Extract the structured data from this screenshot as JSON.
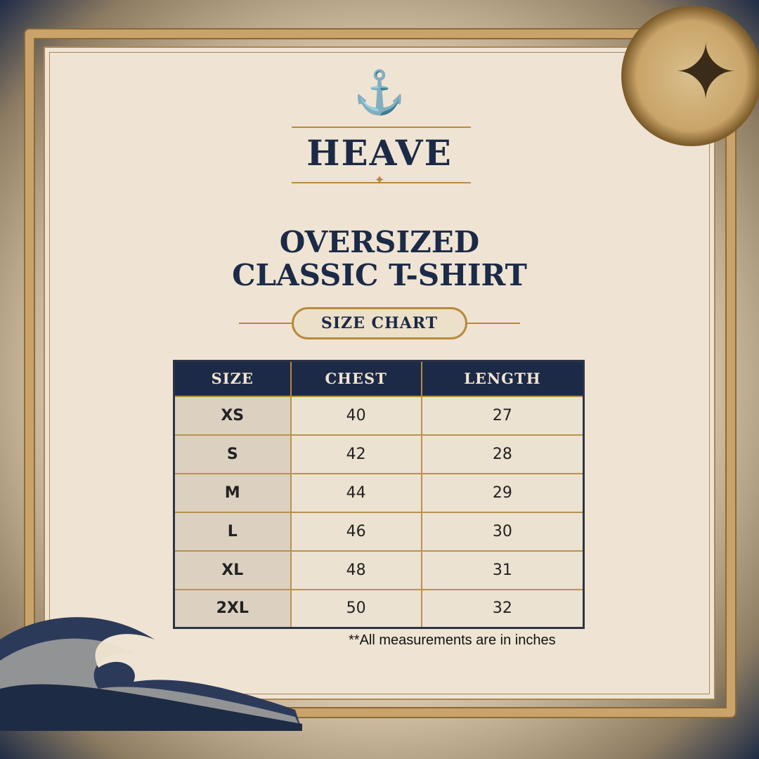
{
  "brand": "HEAVE",
  "title_line1": "OVERSIZED",
  "title_line2": "CLASSIC T-SHIRT",
  "badge": "SIZE CHART",
  "table": {
    "headers": [
      "SIZE",
      "CHEST",
      "LENGTH"
    ],
    "rows": [
      [
        "XS",
        "40",
        "27"
      ],
      [
        "S",
        "42",
        "28"
      ],
      [
        "M",
        "44",
        "29"
      ],
      [
        "L",
        "46",
        "30"
      ],
      [
        "XL",
        "48",
        "31"
      ],
      [
        "2XL",
        "50",
        "32"
      ]
    ]
  },
  "note": "**All measurements are in inches",
  "icons": {
    "logo": "anchor-icon",
    "decor": "compass-icon"
  },
  "colors": {
    "navy": "#1b2a47",
    "gold": "#b8893e",
    "parchment": "#efe4d3"
  }
}
